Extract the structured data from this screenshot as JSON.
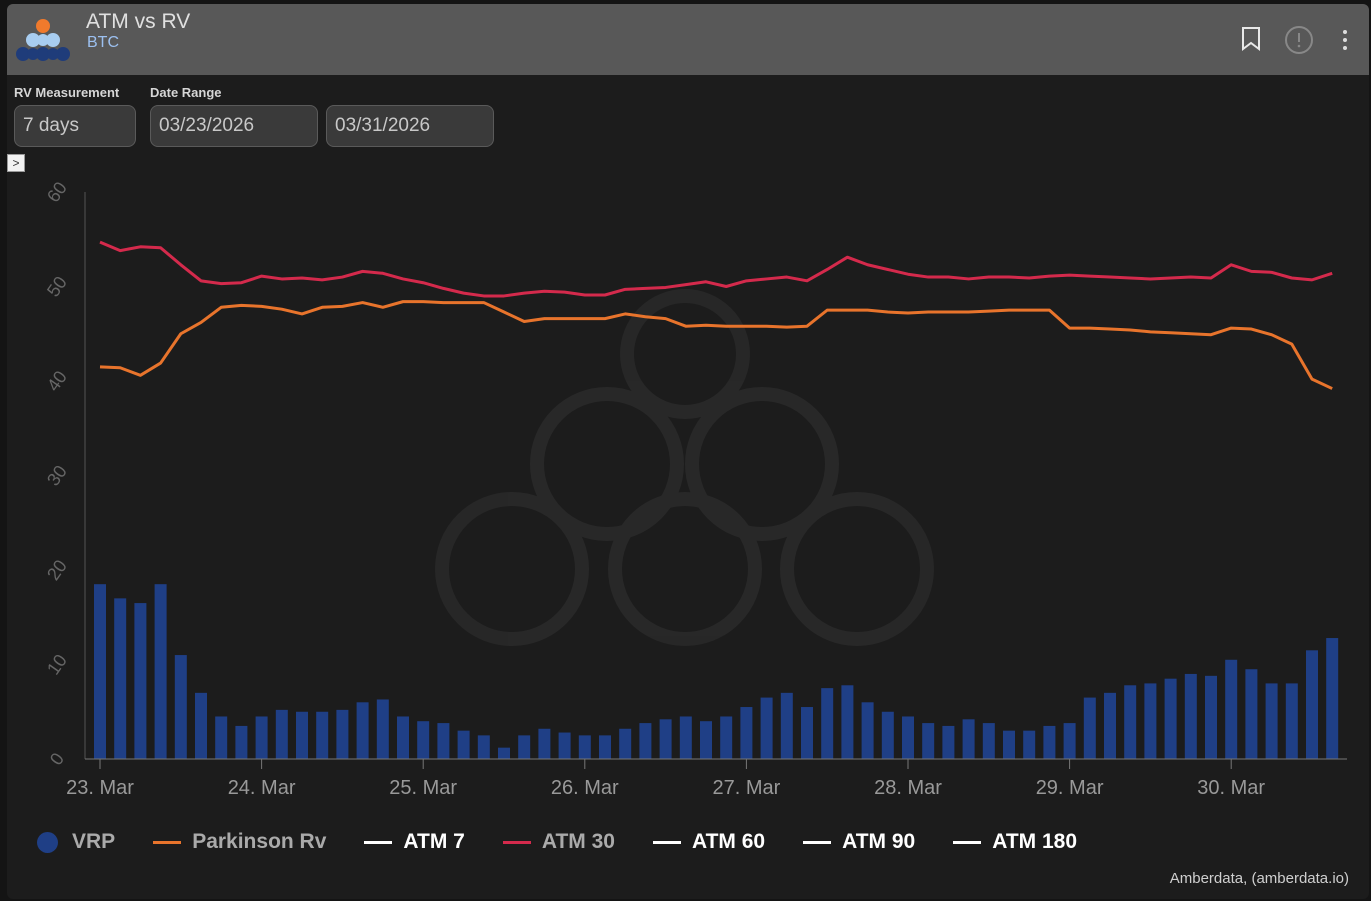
{
  "header": {
    "title": "ATM vs RV",
    "subtitle": "BTC",
    "icons": [
      "bookmark-icon",
      "info-icon",
      "more-vertical-icon"
    ]
  },
  "controls": {
    "rv_label": "RV Measurement",
    "rv_value": "7 days",
    "date_label": "Date Range",
    "date_from": "03/23/2026",
    "date_to": "03/31/2026",
    "toggle": ">"
  },
  "credit": "Amberdata, (amberdata.io)",
  "chart_data": {
    "type": "line+bar",
    "title": "ATM vs RV",
    "ylim": [
      0,
      60
    ],
    "yticks": [
      0,
      10,
      20,
      30,
      40,
      50,
      60
    ],
    "xticks": [
      "23. Mar",
      "24. Mar",
      "25. Mar",
      "26. Mar",
      "27. Mar",
      "28. Mar",
      "29. Mar",
      "30. Mar"
    ],
    "x_start": "23. Mar 00:00",
    "x_step_hours": 3,
    "series": [
      {
        "name": "VRP",
        "type": "bar",
        "color": "#1f3f86",
        "values": [
          18.5,
          17,
          16.5,
          18.5,
          11,
          7,
          4.5,
          3.5,
          4.5,
          5.2,
          5.0,
          5.0,
          5.2,
          6.0,
          6.3,
          4.5,
          4.0,
          3.8,
          3.0,
          2.5,
          1.2,
          2.5,
          3.2,
          2.8,
          2.5,
          2.5,
          3.2,
          3.8,
          4.2,
          4.5,
          4.0,
          4.5,
          5.5,
          6.5,
          7.0,
          5.5,
          7.5,
          7.8,
          6.0,
          5.0,
          4.5,
          3.8,
          3.5,
          4.2,
          3.8,
          3.0,
          3.0,
          3.5,
          3.8,
          6.5,
          7.0,
          7.8,
          8.0,
          8.5,
          9.0,
          8.8,
          10.5,
          9.5,
          8.0,
          8.0,
          11.5,
          12.8
        ]
      },
      {
        "name": "Parkinson Rv",
        "type": "line",
        "color": "#e8742c",
        "values": [
          41.5,
          41.4,
          40.6,
          41.9,
          45.0,
          46.2,
          47.8,
          48.0,
          47.9,
          47.6,
          47.1,
          47.8,
          47.9,
          48.3,
          47.8,
          48.4,
          48.4,
          48.3,
          48.3,
          48.3,
          47.3,
          46.3,
          46.6,
          46.6,
          46.6,
          46.6,
          47.1,
          46.8,
          46.6,
          45.8,
          45.9,
          45.8,
          45.8,
          45.8,
          45.7,
          45.8,
          47.5,
          47.5,
          47.5,
          47.3,
          47.2,
          47.3,
          47.3,
          47.3,
          47.4,
          47.5,
          47.5,
          47.5,
          45.6,
          45.6,
          45.5,
          45.4,
          45.2,
          45.1,
          45.0,
          44.9,
          45.6,
          45.5,
          44.9,
          43.9,
          40.2,
          39.2
        ]
      },
      {
        "name": "ATM 7",
        "type": "line",
        "color": "#ffffff",
        "values": []
      },
      {
        "name": "ATM 30",
        "type": "line",
        "color": "#d42a4c",
        "values": [
          54.7,
          53.8,
          54.2,
          54.1,
          52.3,
          50.6,
          50.3,
          50.4,
          51.1,
          50.8,
          50.9,
          50.7,
          51.0,
          51.6,
          51.4,
          50.8,
          50.4,
          49.8,
          49.3,
          49.0,
          49.0,
          49.3,
          49.5,
          49.4,
          49.1,
          49.1,
          49.7,
          49.8,
          49.9,
          50.2,
          50.5,
          50.0,
          50.6,
          50.8,
          51.0,
          50.6,
          51.8,
          53.1,
          52.3,
          51.8,
          51.3,
          51.0,
          51.0,
          50.8,
          51.0,
          51.0,
          50.9,
          51.1,
          51.2,
          51.1,
          51.0,
          50.9,
          50.8,
          50.9,
          51.0,
          50.9,
          52.3,
          51.6,
          51.5,
          50.9,
          50.7,
          51.4
        ]
      },
      {
        "name": "ATM 60",
        "type": "line",
        "color": "#ffffff",
        "values": []
      },
      {
        "name": "ATM 90",
        "type": "line",
        "color": "#ffffff",
        "values": []
      },
      {
        "name": "ATM 180",
        "type": "line",
        "color": "#ffffff",
        "values": []
      }
    ],
    "legend": [
      {
        "name": "VRP",
        "symbol": "circle",
        "color": "#1f3f86",
        "text_color": "#aaaaaa"
      },
      {
        "name": "Parkinson Rv",
        "symbol": "line",
        "color": "#e8742c",
        "text_color": "#aaaaaa"
      },
      {
        "name": "ATM 7",
        "symbol": "line",
        "color": "#ffffff",
        "text_color": "#ffffff"
      },
      {
        "name": "ATM 30",
        "symbol": "line",
        "color": "#d42a4c",
        "text_color": "#aaaaaa"
      },
      {
        "name": "ATM 60",
        "symbol": "line",
        "color": "#ffffff",
        "text_color": "#ffffff"
      },
      {
        "name": "ATM 90",
        "symbol": "line",
        "color": "#ffffff",
        "text_color": "#ffffff"
      },
      {
        "name": "ATM 180",
        "symbol": "line",
        "color": "#ffffff",
        "text_color": "#ffffff"
      }
    ],
    "legend_position": "bottom-left"
  }
}
